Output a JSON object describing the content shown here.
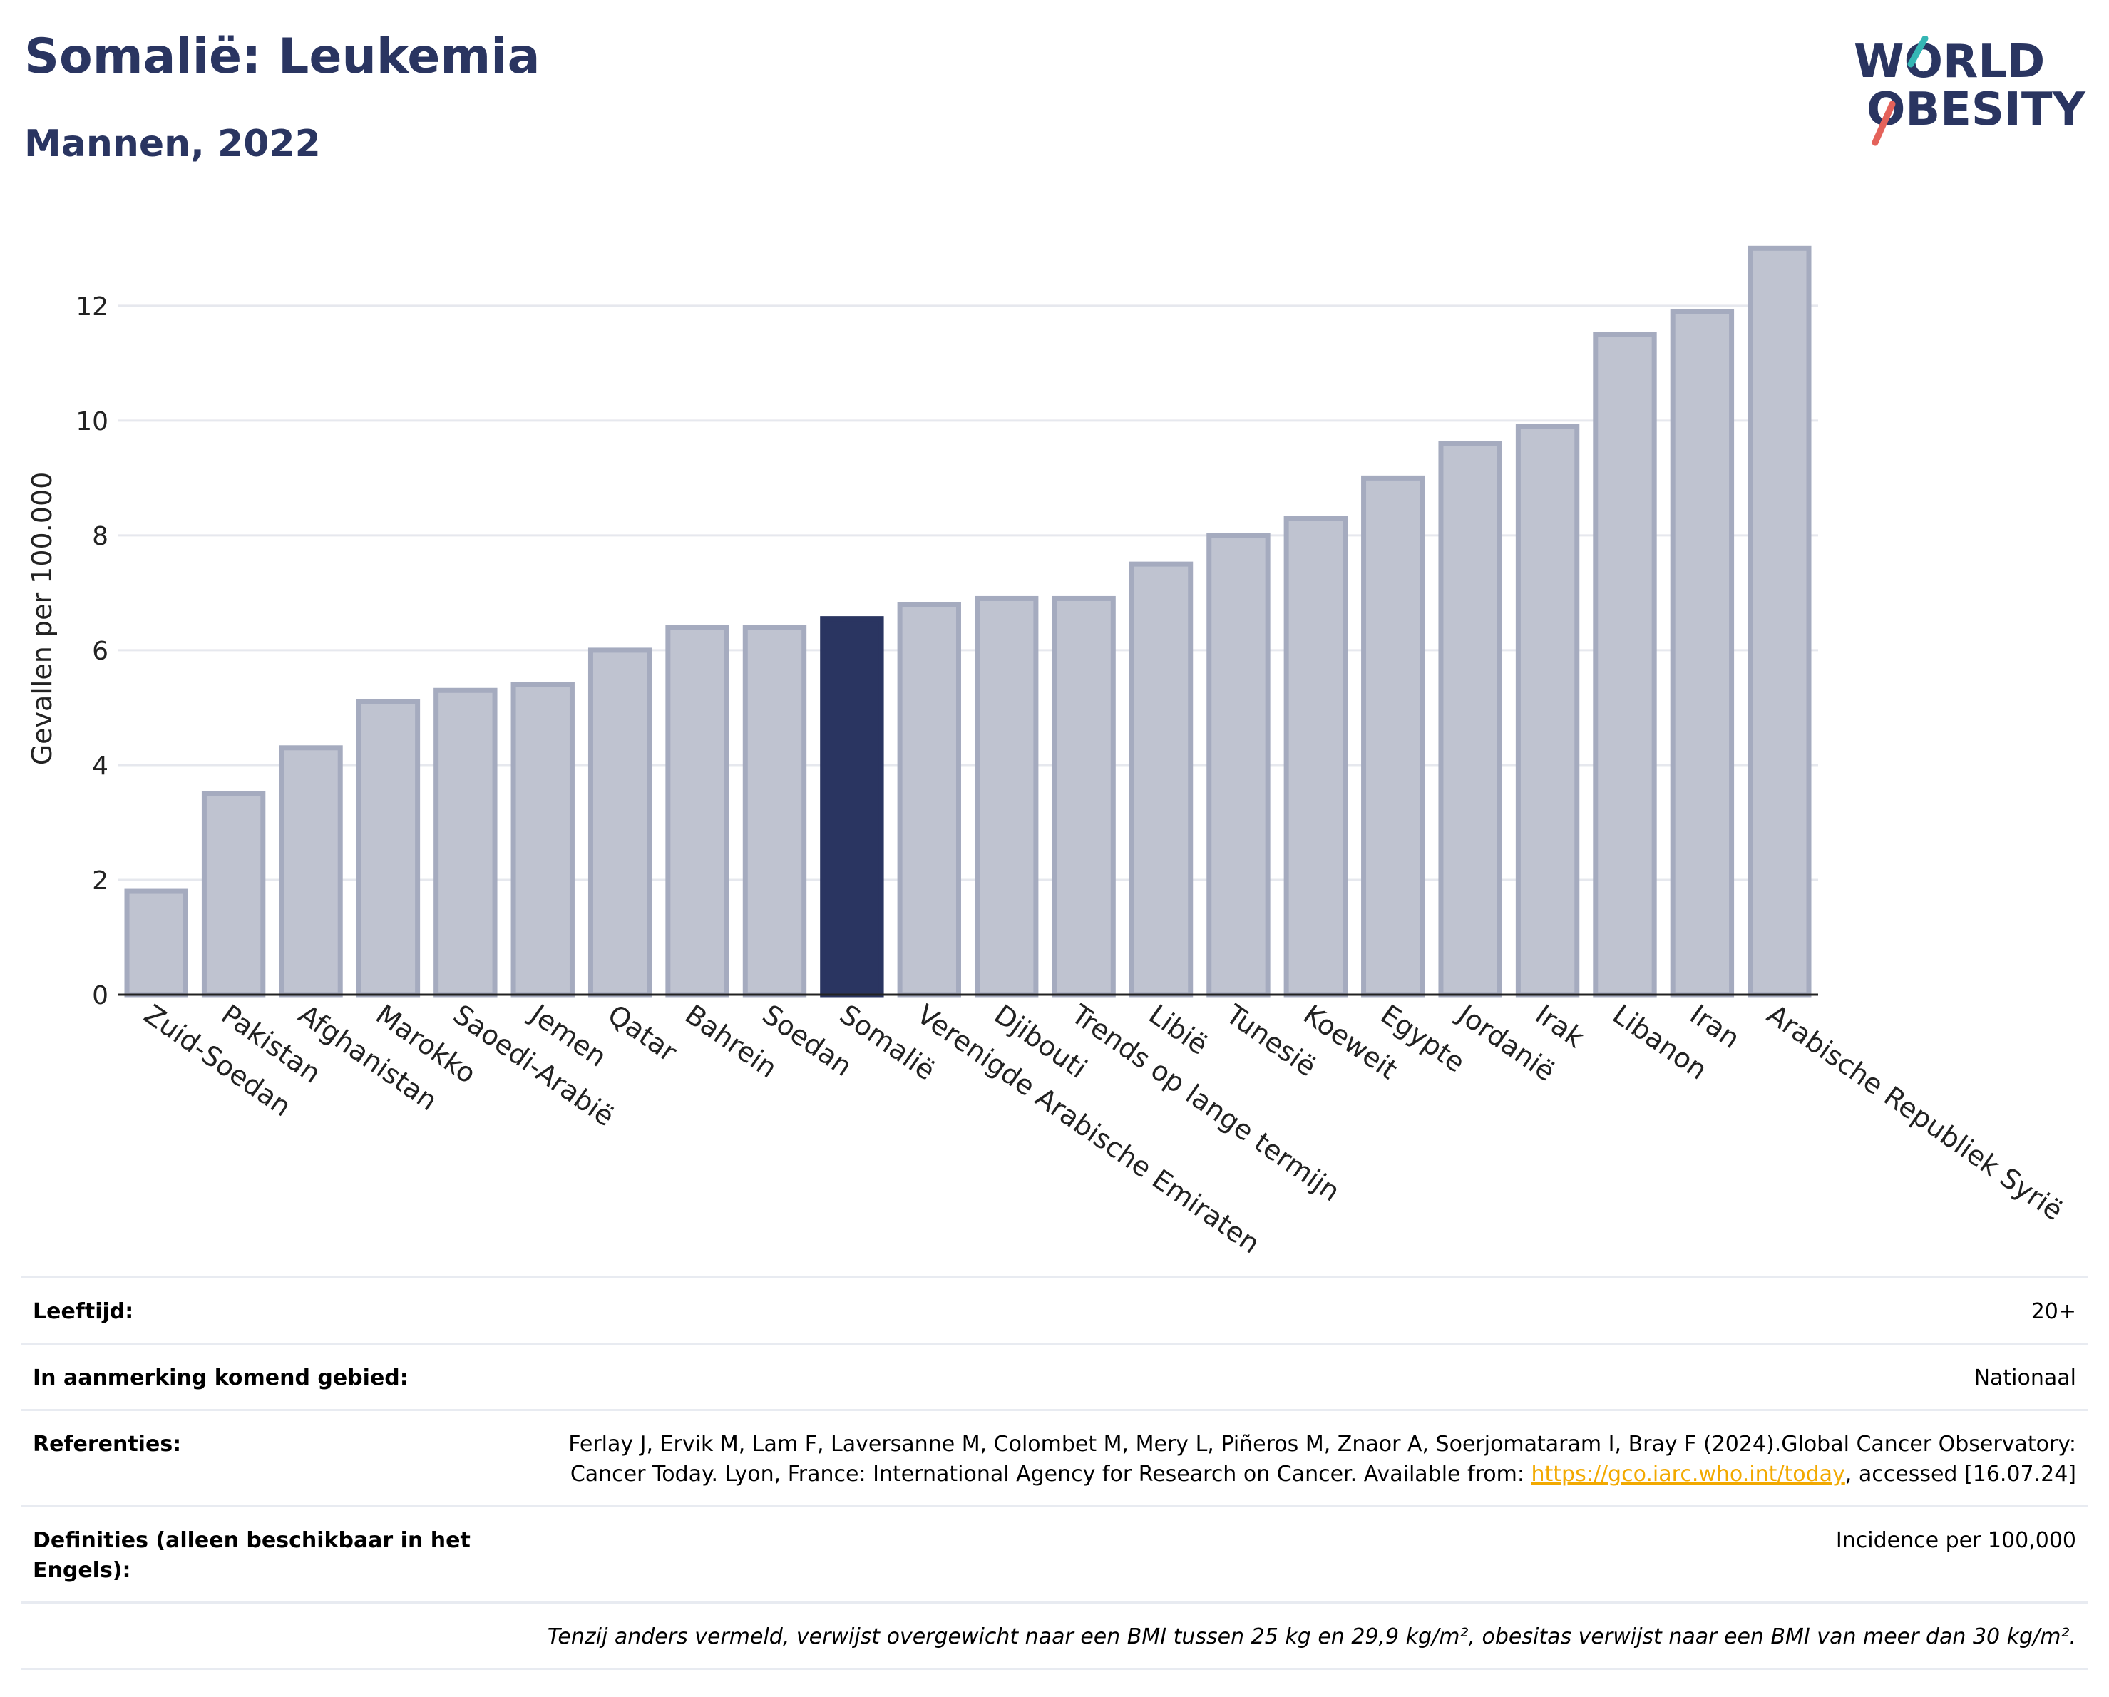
{
  "header": {
    "title": "Somalië: Leukemia",
    "subtitle": "Mannen, 2022"
  },
  "logo": {
    "line1": "WORLD",
    "line2": "OBESITY"
  },
  "colors": {
    "highlight": "#2a3561",
    "bar": "#bfc3d0",
    "bar_border": "#a5abbf",
    "grid": "#e6e8ee",
    "logo_teal": "#35b6b4",
    "logo_red": "#e4625a",
    "link": "#f2a900"
  },
  "chart_data": {
    "type": "bar",
    "ylabel": "Gevallen per 100.000",
    "ylim": [
      0,
      13.6
    ],
    "yticks": [
      0,
      2,
      4,
      6,
      8,
      10,
      12
    ],
    "grid": true,
    "highlight": "Somalië",
    "categories": [
      "Zuid-Soedan",
      "Pakistan",
      "Afghanistan",
      "Marokko",
      "Saoedi-Arabië",
      "Jemen",
      "Qatar",
      "Bahrein",
      "Soedan",
      "Somalië",
      "Verenigde Arabische Emiraten",
      "Djibouti",
      "Trends op lange termijn",
      "Libië",
      "Tunesië",
      "Koeweit",
      "Egypte",
      "Jordanië",
      "Irak",
      "Libanon",
      "Iran",
      "Arabische Republiek Syrië"
    ],
    "values": [
      1.8,
      3.5,
      4.3,
      5.1,
      5.3,
      5.4,
      6.0,
      6.4,
      6.4,
      6.55,
      6.8,
      6.9,
      6.9,
      7.5,
      8.0,
      8.3,
      9.0,
      9.6,
      9.9,
      11.5,
      11.9,
      13.0
    ]
  },
  "info": {
    "age_label": "Leeftijd:",
    "age_value": "20+",
    "area_label": "In aanmerking komend gebied:",
    "area_value": "Nationaal",
    "ref_label": "Referenties:",
    "ref_text_1": "Ferlay J, Ervik M, Lam F, Laversanne M, Colombet M, Mery L, Piñeros M, Znaor A, Soerjomataram I, Bray F (2024).Global Cancer Observatory: Cancer Today. Lyon, France: International Agency for Research on Cancer. Available from: ",
    "ref_link": "https://gco.iarc.who.int/today",
    "ref_text_2": ", accessed [16.07.24]",
    "def_label": "Definities (alleen beschikbaar in het Engels):",
    "def_value": "Incidence per 100,000",
    "note": "Tenzij anders vermeld, verwijst overgewicht naar een BMI tussen 25 kg en 29,9 kg/m², obesitas verwijst naar een BMI van meer dan 30 kg/m²."
  }
}
